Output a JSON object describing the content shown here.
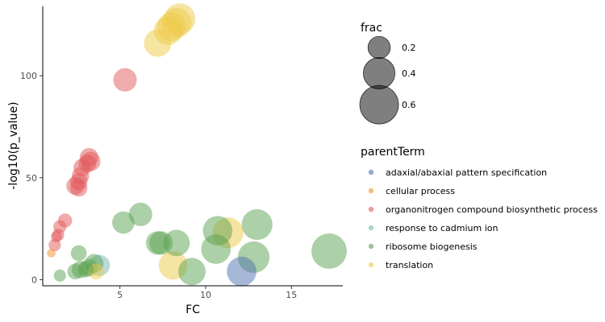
{
  "chart_data": {
    "type": "scatter",
    "title": "",
    "xlabel": "FC",
    "ylabel": "-log10(p_value)",
    "xlim": [
      0.5,
      18.0
    ],
    "ylim": [
      -3,
      134
    ],
    "xticks": [
      5,
      10,
      15
    ],
    "yticks": [
      0,
      50,
      100
    ],
    "grid": false,
    "legend_position": "right",
    "size_legend": {
      "title": "frac",
      "entries": [
        {
          "label": "0.2",
          "frac": 0.2
        },
        {
          "label": "0.4",
          "frac": 0.4
        },
        {
          "label": "0.6",
          "frac": 0.6
        }
      ]
    },
    "color_legend": {
      "title": "parentTerm",
      "entries": [
        {
          "label": "adaxial/abaxial pattern specification",
          "color": "#4C72B0"
        },
        {
          "label": "cellular process",
          "color": "#F28E2B"
        },
        {
          "label": "organonitrogen compound biosynthetic process",
          "color": "#E15759"
        },
        {
          "label": "response to cadmium ion",
          "color": "#76B7B2"
        },
        {
          "label": "ribosome biogenesis",
          "color": "#59A14F"
        },
        {
          "label": "translation",
          "color": "#EDC948"
        }
      ]
    },
    "series": [
      {
        "name": "translation",
        "color": "#EDC948",
        "points": [
          {
            "x": 8.5,
            "y": 128,
            "frac": 0.38
          },
          {
            "x": 8.3,
            "y": 126,
            "frac": 0.36
          },
          {
            "x": 8.0,
            "y": 124,
            "frac": 0.33
          },
          {
            "x": 7.8,
            "y": 122,
            "frac": 0.32
          },
          {
            "x": 7.2,
            "y": 116,
            "frac": 0.3
          },
          {
            "x": 11.3,
            "y": 23,
            "frac": 0.38
          },
          {
            "x": 8.1,
            "y": 7,
            "frac": 0.33
          },
          {
            "x": 3.6,
            "y": 4,
            "frac": 0.1
          }
        ]
      },
      {
        "name": "organonitrogen compound biosynthetic process",
        "color": "#E15759",
        "points": [
          {
            "x": 5.3,
            "y": 98,
            "frac": 0.22
          },
          {
            "x": 3.2,
            "y": 60,
            "frac": 0.14
          },
          {
            "x": 3.3,
            "y": 58,
            "frac": 0.15
          },
          {
            "x": 3.1,
            "y": 57,
            "frac": 0.13
          },
          {
            "x": 2.8,
            "y": 55,
            "frac": 0.12
          },
          {
            "x": 2.7,
            "y": 51,
            "frac": 0.12
          },
          {
            "x": 2.6,
            "y": 48,
            "frac": 0.12
          },
          {
            "x": 2.4,
            "y": 46,
            "frac": 0.13
          },
          {
            "x": 2.6,
            "y": 45,
            "frac": 0.12
          },
          {
            "x": 1.8,
            "y": 29,
            "frac": 0.08
          },
          {
            "x": 1.5,
            "y": 26,
            "frac": 0.07
          },
          {
            "x": 1.4,
            "y": 22,
            "frac": 0.06
          },
          {
            "x": 1.3,
            "y": 21,
            "frac": 0.05
          },
          {
            "x": 1.2,
            "y": 17,
            "frac": 0.06
          }
        ]
      },
      {
        "name": "cellular process",
        "color": "#F28E2B",
        "points": [
          {
            "x": 1.0,
            "y": 13,
            "frac": 0.03
          }
        ]
      },
      {
        "name": "ribosome biogenesis",
        "color": "#59A14F",
        "points": [
          {
            "x": 6.2,
            "y": 32,
            "frac": 0.22
          },
          {
            "x": 5.2,
            "y": 28,
            "frac": 0.2
          },
          {
            "x": 13.0,
            "y": 27,
            "frac": 0.38
          },
          {
            "x": 10.7,
            "y": 24,
            "frac": 0.35
          },
          {
            "x": 8.3,
            "y": 18,
            "frac": 0.28
          },
          {
            "x": 7.2,
            "y": 18,
            "frac": 0.22
          },
          {
            "x": 7.4,
            "y": 18,
            "frac": 0.22
          },
          {
            "x": 10.6,
            "y": 15,
            "frac": 0.35
          },
          {
            "x": 17.2,
            "y": 14,
            "frac": 0.5
          },
          {
            "x": 12.8,
            "y": 11,
            "frac": 0.4
          },
          {
            "x": 2.6,
            "y": 13,
            "frac": 0.1
          },
          {
            "x": 3.5,
            "y": 8,
            "frac": 0.14
          },
          {
            "x": 3.2,
            "y": 6,
            "frac": 0.12
          },
          {
            "x": 2.7,
            "y": 5,
            "frac": 0.12
          },
          {
            "x": 3.0,
            "y": 5,
            "frac": 0.1
          },
          {
            "x": 2.4,
            "y": 4,
            "frac": 0.1
          },
          {
            "x": 9.2,
            "y": 4,
            "frac": 0.3
          },
          {
            "x": 1.5,
            "y": 2,
            "frac": 0.06
          }
        ]
      },
      {
        "name": "response to cadmium ion",
        "color": "#76B7B2",
        "points": [
          {
            "x": 3.8,
            "y": 7,
            "frac": 0.18
          }
        ]
      },
      {
        "name": "adaxial/abaxial pattern specification",
        "color": "#4C72B0",
        "points": [
          {
            "x": 12.1,
            "y": 4,
            "frac": 0.35
          }
        ]
      }
    ]
  }
}
